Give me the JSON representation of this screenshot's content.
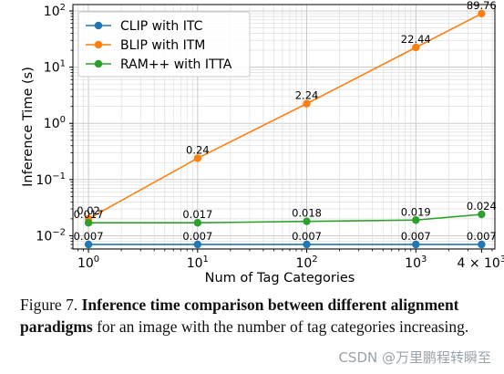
{
  "chart_data": {
    "type": "line",
    "xscale": "log",
    "yscale": "log",
    "xlabel": "Num of Tag Categories",
    "ylabel": "Inference Time (s)",
    "x": [
      1,
      10,
      100,
      1000,
      4000
    ],
    "x_tick_values": [
      1,
      10,
      100,
      1000,
      4000
    ],
    "x_tick_labels": [
      {
        "base": "10",
        "exp": "0"
      },
      {
        "base": "10",
        "exp": "1"
      },
      {
        "base": "10",
        "exp": "2"
      },
      {
        "base": "10",
        "exp": "3"
      },
      {
        "base": "4 × 10",
        "exp": "3"
      }
    ],
    "y_tick_values": [
      0.01,
      0.1,
      1,
      10,
      100
    ],
    "y_tick_labels": [
      {
        "base": "10",
        "exp": "−2"
      },
      {
        "base": "10",
        "exp": "−1"
      },
      {
        "base": "10",
        "exp": "0"
      },
      {
        "base": "10",
        "exp": "1"
      },
      {
        "base": "10",
        "exp": "2"
      }
    ],
    "xlim": [
      0.72,
      5300
    ],
    "ylim": [
      0.0058,
      130
    ],
    "grid": true,
    "legend_position": "top-left",
    "series": [
      {
        "name": "CLIP with ITC",
        "color": "#1f77b4",
        "values": [
          0.007,
          0.007,
          0.007,
          0.007,
          0.007
        ],
        "labels": [
          "0.007",
          "0.007",
          "0.007",
          "0.007",
          "0.007"
        ]
      },
      {
        "name": "BLIP with ITM",
        "color": "#ff7f0e",
        "values": [
          0.02,
          0.24,
          2.24,
          22.44,
          89.76
        ],
        "labels": [
          "0.02",
          "0.24",
          "2.24",
          "22.44",
          "89.76"
        ]
      },
      {
        "name": "RAM++ with ITTA",
        "color": "#2ca02c",
        "values": [
          0.017,
          0.017,
          0.018,
          0.019,
          0.024
        ],
        "labels": [
          "0.017",
          "0.017",
          "0.018",
          "0.019",
          "0.024"
        ]
      }
    ]
  },
  "caption": {
    "prefix": "Figure 7. ",
    "bold": "Inference time comparison between different alignment paradigms",
    "rest": " for an image with the number of tag categories increasing."
  },
  "watermark": "CSDN @万里鹏程转瞬至"
}
